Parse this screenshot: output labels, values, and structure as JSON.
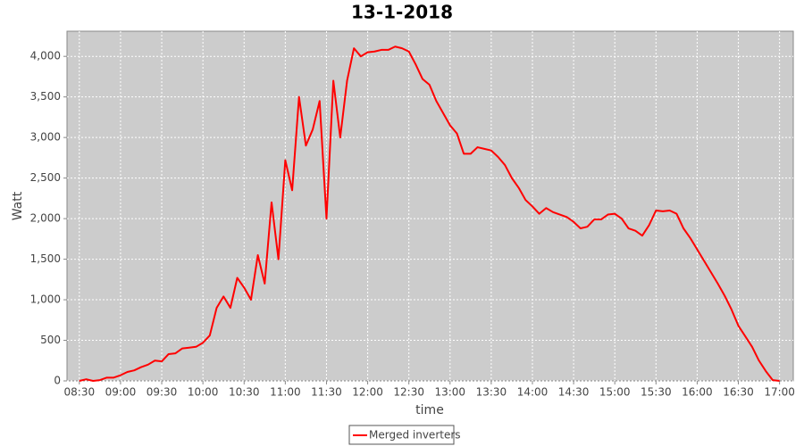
{
  "chart_data": {
    "type": "line",
    "title": "13-1-2018",
    "x_label": "time",
    "y_label": "Watt",
    "x": [
      "08:30",
      "08:35",
      "08:40",
      "08:45",
      "08:50",
      "08:55",
      "09:00",
      "09:05",
      "09:10",
      "09:15",
      "09:20",
      "09:25",
      "09:30",
      "09:35",
      "09:40",
      "09:45",
      "09:50",
      "09:55",
      "10:00",
      "10:05",
      "10:10",
      "10:15",
      "10:20",
      "10:25",
      "10:30",
      "10:35",
      "10:40",
      "10:45",
      "10:50",
      "10:55",
      "11:00",
      "11:05",
      "11:10",
      "11:15",
      "11:20",
      "11:25",
      "11:30",
      "11:35",
      "11:40",
      "11:45",
      "11:50",
      "11:55",
      "12:00",
      "12:05",
      "12:10",
      "12:15",
      "12:20",
      "12:25",
      "12:30",
      "12:35",
      "12:40",
      "12:45",
      "12:50",
      "12:55",
      "13:00",
      "13:05",
      "13:10",
      "13:15",
      "13:20",
      "13:25",
      "13:30",
      "13:35",
      "13:40",
      "13:45",
      "13:50",
      "13:55",
      "14:00",
      "14:05",
      "14:10",
      "14:15",
      "14:20",
      "14:25",
      "14:30",
      "14:35",
      "14:40",
      "14:45",
      "14:50",
      "14:55",
      "15:00",
      "15:05",
      "15:10",
      "15:15",
      "15:20",
      "15:25",
      "15:30",
      "15:35",
      "15:40",
      "15:45",
      "15:50",
      "15:55",
      "16:00",
      "16:05",
      "16:10",
      "16:15",
      "16:20",
      "16:25",
      "16:30",
      "16:35",
      "16:40",
      "16:45",
      "16:50",
      "16:55",
      "17:00"
    ],
    "series": [
      {
        "name": "Merged inverters",
        "color": "#ff0000",
        "values": [
          0,
          20,
          0,
          10,
          40,
          40,
          70,
          110,
          130,
          170,
          200,
          250,
          240,
          330,
          340,
          400,
          410,
          420,
          470,
          560,
          900,
          1040,
          900,
          1270,
          1150,
          1000,
          1550,
          1200,
          2200,
          1500,
          2720,
          2350,
          3500,
          2900,
          3100,
          3450,
          2000,
          3700,
          3000,
          3700,
          4100,
          4000,
          4050,
          4060,
          4080,
          4080,
          4120,
          4100,
          4060,
          3900,
          3720,
          3650,
          3450,
          3300,
          3150,
          3050,
          2800,
          2800,
          2880,
          2860,
          2840,
          2760,
          2660,
          2500,
          2380,
          2230,
          2150,
          2060,
          2130,
          2080,
          2050,
          2020,
          1960,
          1880,
          1900,
          1990,
          1990,
          2050,
          2060,
          2000,
          1880,
          1850,
          1790,
          1920,
          2100,
          2090,
          2100,
          2060,
          1880,
          1760,
          1620,
          1480,
          1340,
          1200,
          1050,
          880,
          680,
          550,
          420,
          250,
          120,
          10,
          0
        ]
      }
    ],
    "xlim": [
      "08:21",
      "17:10"
    ],
    "xticks": [
      "08:30",
      "09:00",
      "09:30",
      "10:00",
      "10:30",
      "11:00",
      "11:30",
      "12:00",
      "12:30",
      "13:00",
      "13:30",
      "14:00",
      "14:30",
      "15:00",
      "15:30",
      "16:00",
      "16:30",
      "17:00"
    ],
    "ylim": [
      0,
      4310
    ],
    "yticks": [
      0,
      500,
      {
        "value": 1000,
        "label": "1,000"
      },
      {
        "value": 1500,
        "label": "1,500"
      },
      {
        "value": 2000,
        "label": "2,000"
      },
      {
        "value": 2500,
        "label": "2,500"
      },
      {
        "value": 3000,
        "label": "3,000"
      },
      {
        "value": 3500,
        "label": "3,500"
      },
      {
        "value": 4000,
        "label": "4,000"
      }
    ],
    "grid": true,
    "legend": "bottom"
  }
}
